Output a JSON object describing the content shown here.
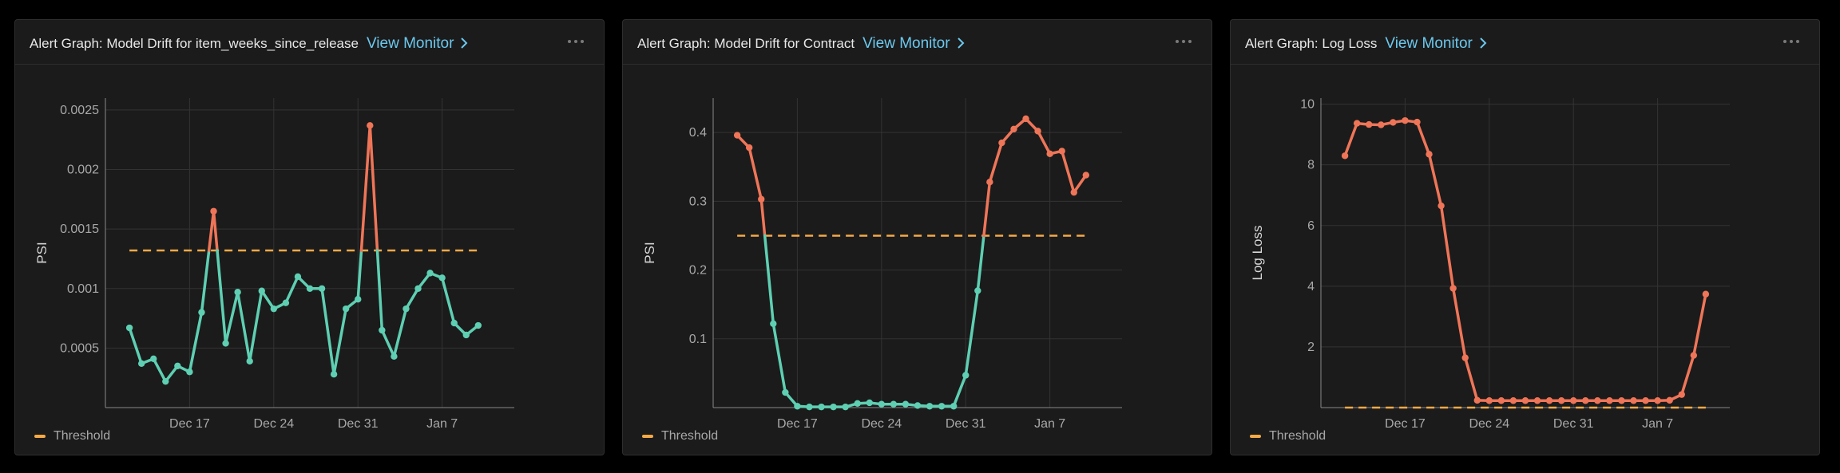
{
  "colors": {
    "normal": "#5ecfb2",
    "alert": "#ef7558",
    "threshold": "#f5a947",
    "grid": "#333333",
    "axis": "#8a8a8a",
    "tick": "#a8a8a8",
    "link": "#6cc8ee"
  },
  "panels": [
    {
      "title": "Alert Graph: Model Drift for item_weeks_since_release",
      "link_label": "View Monitor",
      "legend_label": "Threshold"
    },
    {
      "title": "Alert Graph: Model Drift for Contract",
      "link_label": "View Monitor",
      "legend_label": "Threshold"
    },
    {
      "title": "Alert Graph: Log Loss",
      "link_label": "View Monitor",
      "legend_label": "Threshold"
    }
  ],
  "chart_data": [
    {
      "type": "line",
      "title": "Alert Graph: Model Drift for item_weeks_since_release",
      "ylabel": "PSI",
      "xlabel": "",
      "x_start": "Dec 12",
      "x_range": [
        "Dec 10",
        "Jan 13"
      ],
      "ylim": [
        0,
        0.0026
      ],
      "yticks": [
        0.0005,
        0.001,
        0.0015,
        0.002,
        0.0025
      ],
      "ytick_labels": [
        "0.0005",
        "0.001",
        "0.0015",
        "0.002",
        "0.0025"
      ],
      "xticks": [
        "Dec 17",
        "Dec 24",
        "Dec 31",
        "Jan 7"
      ],
      "xtick_dates": [
        "Dec 17",
        "Dec 24",
        "Dec 31",
        "Jan 7"
      ],
      "threshold": 0.00132,
      "grid": true,
      "legend": "bottom-left",
      "series": [
        {
          "values": [
            0.00067,
            0.00037,
            0.00041,
            0.00022,
            0.00035,
            0.0003,
            0.0008,
            0.00165,
            0.00054,
            0.00097,
            0.00039,
            0.00098,
            0.00083,
            0.00088,
            0.0011,
            0.001,
            0.001,
            0.00028,
            0.00083,
            0.00091,
            0.00237,
            0.00065,
            0.00043,
            0.00083,
            0.001,
            0.00113,
            0.00109,
            0.00071,
            0.00061,
            0.00069
          ]
        }
      ]
    },
    {
      "type": "line",
      "title": "Alert Graph: Model Drift for Contract",
      "ylabel": "PSI",
      "xlabel": "",
      "x_start": "Dec 12",
      "x_range": [
        "Dec 10",
        "Jan 13"
      ],
      "ylim": [
        0,
        0.45
      ],
      "yticks": [
        0.1,
        0.2,
        0.3,
        0.4
      ],
      "ytick_labels": [
        "0.1",
        "0.2",
        "0.3",
        "0.4"
      ],
      "xticks": [
        "Dec 17",
        "Dec 24",
        "Dec 31",
        "Jan 7"
      ],
      "xtick_dates": [
        "Dec 17",
        "Dec 24",
        "Dec 31",
        "Jan 7"
      ],
      "threshold": 0.25,
      "grid": true,
      "legend": "bottom-left",
      "series": [
        {
          "values": [
            0.396,
            0.378,
            0.303,
            0.122,
            0.022,
            0.002,
            0.001,
            0.001,
            0.001,
            0.001,
            0.006,
            0.007,
            0.005,
            0.005,
            0.005,
            0.003,
            0.002,
            0.002,
            0.002,
            0.047,
            0.17,
            0.328,
            0.385,
            0.405,
            0.42,
            0.402,
            0.369,
            0.373,
            0.313,
            0.338
          ]
        }
      ]
    },
    {
      "type": "line",
      "title": "Alert Graph: Log Loss",
      "ylabel": "Log Loss",
      "xlabel": "",
      "x_start": "Dec 12",
      "x_range": [
        "Dec 10",
        "Jan 13"
      ],
      "ylim": [
        0,
        10.2
      ],
      "yticks": [
        2,
        4,
        6,
        8,
        10
      ],
      "ytick_labels": [
        "2",
        "4",
        "6",
        "8",
        "10"
      ],
      "xticks": [
        "Dec 17",
        "Dec 24",
        "Dec 31",
        "Jan 7"
      ],
      "xtick_dates": [
        "Dec 17",
        "Dec 24",
        "Dec 31",
        "Jan 7"
      ],
      "threshold": 0,
      "grid": true,
      "legend": "bottom-left",
      "series": [
        {
          "values": [
            8.3,
            9.37,
            9.33,
            9.32,
            9.4,
            9.46,
            9.41,
            8.35,
            6.65,
            3.93,
            1.64,
            0.24,
            0.23,
            0.23,
            0.23,
            0.23,
            0.23,
            0.23,
            0.23,
            0.23,
            0.23,
            0.23,
            0.23,
            0.23,
            0.23,
            0.23,
            0.23,
            0.24,
            0.43,
            1.72,
            3.74
          ]
        }
      ]
    }
  ]
}
